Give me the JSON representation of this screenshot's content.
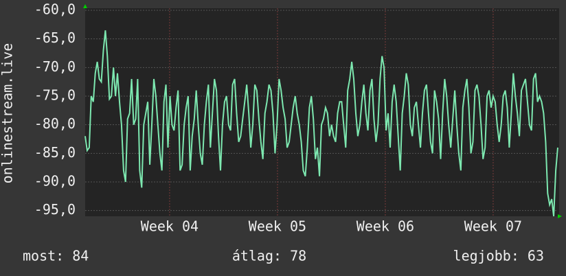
{
  "chart_data": {
    "type": "line",
    "y_label": "onlinestream.live",
    "color": "#7de8b0",
    "ylim": [
      -96,
      -60
    ],
    "yticks": [
      {
        "value": -60,
        "label": "-60,0"
      },
      {
        "value": -65,
        "label": "-65,0"
      },
      {
        "value": -70,
        "label": "-70,0"
      },
      {
        "value": -75,
        "label": "-75,0"
      },
      {
        "value": -80,
        "label": "-80,0"
      },
      {
        "value": -85,
        "label": "-85,0"
      },
      {
        "value": -90,
        "label": "-90,0"
      },
      {
        "value": -95,
        "label": "-95,0"
      }
    ],
    "xlim": [
      3.217,
      7.599
    ],
    "xticks": [
      {
        "value": 4,
        "label": "Week 04"
      },
      {
        "value": 5,
        "label": "Week 05"
      },
      {
        "value": 6,
        "label": "Week 06"
      },
      {
        "value": 7,
        "label": "Week 07"
      }
    ],
    "grid": true,
    "values": [
      -82,
      -84.5,
      -84,
      -75,
      -76,
      -71,
      -69,
      -72,
      -72.5,
      -67,
      -63.5,
      -68,
      -75.5,
      -75,
      -70,
      -75,
      -71,
      -76,
      -80,
      -88,
      -90,
      -79,
      -78,
      -72,
      -80,
      -79,
      -72,
      -88,
      -91,
      -80,
      -78,
      -76,
      -87,
      -80,
      -72,
      -75,
      -80,
      -85,
      -88,
      -76,
      -73,
      -84,
      -75,
      -80,
      -81,
      -77,
      -74,
      -88,
      -87,
      -80,
      -77,
      -75,
      -88,
      -82,
      -79,
      -74,
      -80,
      -85,
      -87,
      -80,
      -76,
      -73,
      -84,
      -78,
      -72,
      -74,
      -82,
      -88,
      -80,
      -76,
      -75,
      -80,
      -81,
      -73,
      -72,
      -78,
      -83,
      -82,
      -79,
      -76,
      -73,
      -78,
      -84,
      -80,
      -73,
      -74,
      -79,
      -83,
      -86,
      -78,
      -76,
      -73,
      -74,
      -78,
      -85,
      -80,
      -72,
      -74,
      -77,
      -79,
      -84,
      -83,
      -80,
      -77,
      -75,
      -78,
      -80,
      -83,
      -88,
      -89,
      -84,
      -77,
      -75,
      -79,
      -86,
      -84,
      -89,
      -80,
      -79,
      -77,
      -78,
      -82,
      -80,
      -82,
      -83,
      -78,
      -76,
      -76,
      -80,
      -84,
      -74,
      -72,
      -69,
      -72,
      -78,
      -82,
      -80,
      -76,
      -73,
      -78,
      -81,
      -74,
      -72,
      -79,
      -83,
      -80,
      -72,
      -68,
      -70,
      -81,
      -78,
      -84,
      -76,
      -73,
      -76,
      -82,
      -88,
      -78,
      -75,
      -71,
      -73,
      -80,
      -82,
      -77,
      -76,
      -80,
      -84,
      -78,
      -74,
      -73,
      -78,
      -83,
      -85,
      -74,
      -76,
      -79,
      -86,
      -78,
      -72,
      -75,
      -80,
      -84,
      -79,
      -74,
      -80,
      -85,
      -88,
      -77,
      -74,
      -72,
      -77,
      -85,
      -83,
      -74,
      -73,
      -75,
      -80,
      -86,
      -84,
      -75,
      -74,
      -77,
      -75,
      -76,
      -80,
      -83,
      -80,
      -75,
      -74,
      -77,
      -84,
      -78,
      -71,
      -75,
      -78,
      -82,
      -74,
      -73,
      -72,
      -76,
      -80,
      -81,
      -72,
      -71,
      -76,
      -75,
      -76,
      -78,
      -83,
      -92,
      -94,
      -93,
      -96,
      -88,
      -84
    ],
    "footer": {
      "current": "most: 84",
      "average": "átlag: 78",
      "best": "legjobb: 63"
    }
  }
}
